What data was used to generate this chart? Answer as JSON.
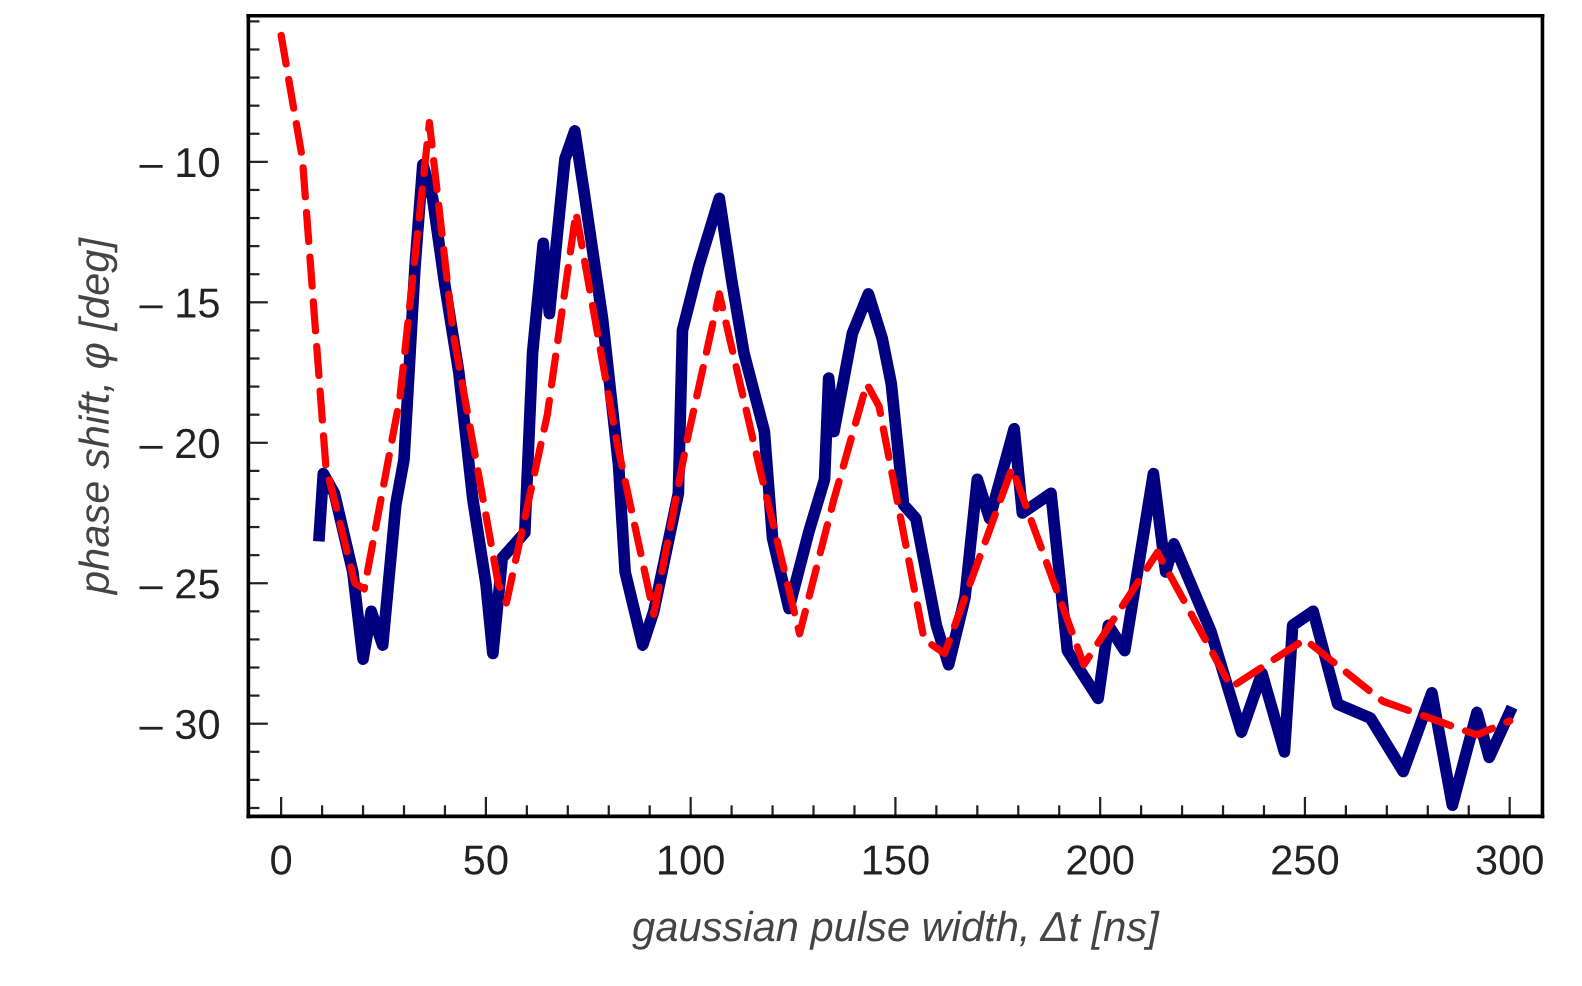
{
  "chart_data": {
    "type": "line",
    "xlabel": "gaussian pulse width, Δt [ns]",
    "ylabel": "phase shift, φ [deg]",
    "xlim": [
      -8,
      308
    ],
    "ylim": [
      -33.3,
      -4.8
    ],
    "xticks": [
      0,
      {
        "value": 10,
        "label": null
      },
      {
        "value": 20,
        "label": null
      },
      {
        "value": 30,
        "label": null
      },
      {
        "value": 40,
        "label": null
      },
      50,
      {
        "value": 60,
        "label": null
      },
      {
        "value": 70,
        "label": null
      },
      {
        "value": 80,
        "label": null
      },
      {
        "value": 90,
        "label": null
      },
      100,
      {
        "value": 110,
        "label": null
      },
      {
        "value": 120,
        "label": null
      },
      {
        "value": 130,
        "label": null
      },
      {
        "value": 140,
        "label": null
      },
      150,
      {
        "value": 160,
        "label": null
      },
      {
        "value": 170,
        "label": null
      },
      {
        "value": 180,
        "label": null
      },
      {
        "value": 190,
        "label": null
      },
      200,
      {
        "value": 210,
        "label": null
      },
      {
        "value": 220,
        "label": null
      },
      {
        "value": 230,
        "label": null
      },
      {
        "value": 240,
        "label": null
      },
      250,
      {
        "value": 260,
        "label": null
      },
      {
        "value": 270,
        "label": null
      },
      {
        "value": 280,
        "label": null
      },
      {
        "value": 290,
        "label": null
      },
      300
    ],
    "yticks": [
      {
        "value": -33,
        "label": null
      },
      {
        "value": -32,
        "label": null
      },
      {
        "value": -31,
        "label": null
      },
      {
        "value": -30,
        "label": "– 30"
      },
      {
        "value": -29,
        "label": null
      },
      {
        "value": -28,
        "label": null
      },
      {
        "value": -27,
        "label": null
      },
      {
        "value": -26,
        "label": null
      },
      {
        "value": -25,
        "label": "– 25"
      },
      {
        "value": -24,
        "label": null
      },
      {
        "value": -23,
        "label": null
      },
      {
        "value": -22,
        "label": null
      },
      {
        "value": -21,
        "label": null
      },
      {
        "value": -20,
        "label": "– 20"
      },
      {
        "value": -19,
        "label": null
      },
      {
        "value": -18,
        "label": null
      },
      {
        "value": -17,
        "label": null
      },
      {
        "value": -16,
        "label": null
      },
      {
        "value": -15,
        "label": "– 15"
      },
      {
        "value": -14,
        "label": null
      },
      {
        "value": -13,
        "label": null
      },
      {
        "value": -12,
        "label": null
      },
      {
        "value": -11,
        "label": null
      },
      {
        "value": -10,
        "label": "– 10"
      },
      {
        "value": -9,
        "label": null
      },
      {
        "value": -8,
        "label": null
      },
      {
        "value": -7,
        "label": null
      },
      {
        "value": -6,
        "label": null
      },
      {
        "value": -5,
        "label": null
      }
    ],
    "grid": false,
    "legend": false,
    "series": [
      {
        "color": "#000080",
        "line_style": "solid",
        "x": [
          9.3,
          10.3,
          13,
          17.5,
          20,
          22,
          24.8,
          28,
          30,
          32.7,
          34.6,
          37,
          40,
          43.4,
          46.8,
          50,
          51.7,
          54,
          59.5,
          61.4,
          64,
          65.5,
          69.3,
          71.7,
          74,
          78.5,
          82.4,
          84,
          88.3,
          91,
          97,
          98,
          102,
          107,
          110,
          113,
          118,
          120,
          124,
          128.8,
          132.7,
          133.7,
          135,
          139.5,
          143.4,
          146.8,
          149,
          152,
          155,
          160,
          163,
          167,
          170,
          173,
          179,
          181,
          188,
          192,
          199.5,
          202,
          206,
          213,
          216,
          218,
          227,
          234.5,
          239.5,
          245,
          247,
          252,
          258,
          266,
          274,
          281,
          286,
          292,
          295,
          300
        ],
        "values": [
          -23.3,
          -21.1,
          -21.8,
          -24.6,
          -27.7,
          -26.0,
          -27.2,
          -22.2,
          -20.6,
          -13.7,
          -10.1,
          -11.3,
          -14.4,
          -17.5,
          -22.0,
          -25.0,
          -27.5,
          -24.1,
          -23.2,
          -16.8,
          -12.9,
          -15.4,
          -9.9,
          -8.9,
          -11.1,
          -15.6,
          -20.8,
          -24.6,
          -27.2,
          -26.0,
          -21.8,
          -16.0,
          -13.7,
          -11.3,
          -14.2,
          -16.8,
          -19.6,
          -23.4,
          -25.9,
          -23.2,
          -21.3,
          -17.7,
          -19.6,
          -16.1,
          -14.7,
          -16.3,
          -17.9,
          -22.2,
          -22.7,
          -26.5,
          -27.9,
          -25.5,
          -21.3,
          -22.7,
          -19.5,
          -22.5,
          -21.8,
          -27.4,
          -29.1,
          -26.5,
          -27.4,
          -21.1,
          -24.6,
          -23.6,
          -26.7,
          -30.3,
          -28.2,
          -31.0,
          -26.5,
          -26.0,
          -29.3,
          -29.8,
          -31.7,
          -28.9,
          -32.9,
          -29.6,
          -31.2,
          -29.6
        ]
      },
      {
        "color": "#ff0000",
        "line_style": "dashed",
        "x": [
          0,
          5.2,
          10.9,
          18,
          20.3,
          29,
          36.2,
          42,
          53,
          55,
          65,
          72,
          82,
          91,
          99,
          107,
          117,
          126.6,
          135,
          143,
          146,
          157,
          162,
          178.5,
          196,
          214,
          232,
          250,
          269,
          292,
          300
        ],
        "values": [
          -5.5,
          -9.9,
          -20.8,
          -25.0,
          -25.2,
          -18.4,
          -8.6,
          -16.1,
          -25.0,
          -25.7,
          -19.0,
          -11.8,
          -20.0,
          -26.1,
          -20.0,
          -14.7,
          -21.0,
          -26.8,
          -22.0,
          -17.9,
          -18.7,
          -27.0,
          -27.5,
          -20.9,
          -27.9,
          -23.9,
          -28.7,
          -27.0,
          -29.2,
          -30.4,
          -29.9
        ]
      }
    ]
  }
}
